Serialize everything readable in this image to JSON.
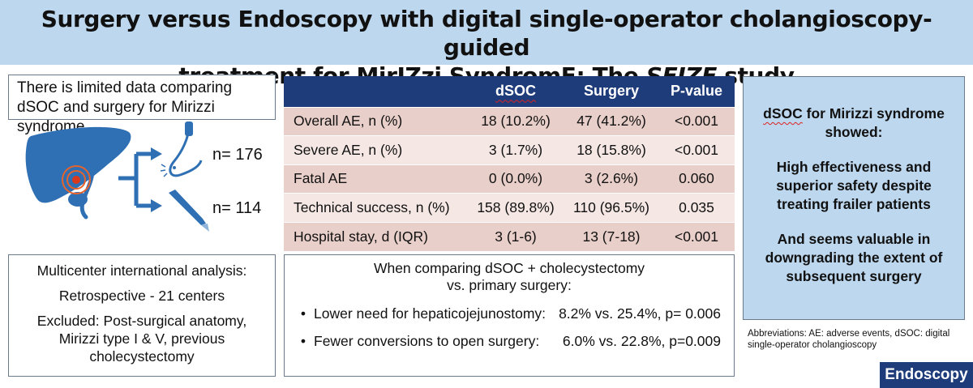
{
  "title": {
    "line1": "Surgery versus Endoscopy with digital single-operator cholangioscopy-guided",
    "line2_a": "treatment for ",
    "line2_b": "MirIZzi",
    "line2_c": " ",
    "line2_d": "SyndromE",
    "line2_e": ": The ",
    "line2_f": "SEIZE",
    "line2_g": " study"
  },
  "intro": "There is limited data comparing dSOC and surgery for Mirizzi syndrome",
  "illustration": {
    "n_dsoc": "n= 176",
    "n_surgery": "n= 114"
  },
  "methods": {
    "line1": "Multicenter international analysis:",
    "line2": "Retrospective - 21 centers",
    "line3": "Excluded: Post-surgical anatomy, Mirizzi type I & V, previous cholecystectomy"
  },
  "table": {
    "headers": [
      "",
      "dSOC",
      "Surgery",
      "P-value"
    ],
    "rows": [
      [
        "Overall AE, n (%)",
        "18 (10.2%)",
        "47 (41.2%)",
        "<0.001"
      ],
      [
        "Severe AE, n (%)",
        "3 (1.7%)",
        "18 (15.8%)",
        "<0.001"
      ],
      [
        "Fatal AE",
        "0 (0.0%)",
        "3 (2.6%)",
        "0.060"
      ],
      [
        "Technical success, n (%)",
        "158 (89.8%)",
        "110 (96.5%)",
        "0.035"
      ],
      [
        "Hospital stay, d (IQR)",
        "3 (1-6)",
        "13 (7-18)",
        "<0.001"
      ]
    ]
  },
  "comparison": {
    "head1": "When comparing dSOC + cholecystectomy",
    "head2": "vs. primary surgery:",
    "bullet": "•",
    "items": [
      {
        "label": "Lower need for hepaticojejunostomy:",
        "value": "8.2% vs. 25.4%, p= 0.006"
      },
      {
        "label": "Fewer conversions to open surgery:",
        "value": "6.0% vs. 22.8%, p=0.009"
      }
    ]
  },
  "conclusion": {
    "p1_a": "dSOC",
    "p1_b": " for Mirizzi syndrome showed:",
    "p2": "High effectiveness and superior safety despite treating frailer patients",
    "p3": "And seems valuable in downgrading the extent of subsequent surgery"
  },
  "abbreviations": "Abbreviations: AE: adverse events, dSOC: digital single-operator cholangioscopy",
  "logo": "Endoscopy",
  "colors": {
    "title_bg": "#bdd7ee",
    "table_header": "#1f3c7a",
    "row_odd": "#e9cfc9",
    "row_even": "#f4e7e4",
    "liver": "#2f6fb3",
    "arrow": "#2f6fb3"
  }
}
